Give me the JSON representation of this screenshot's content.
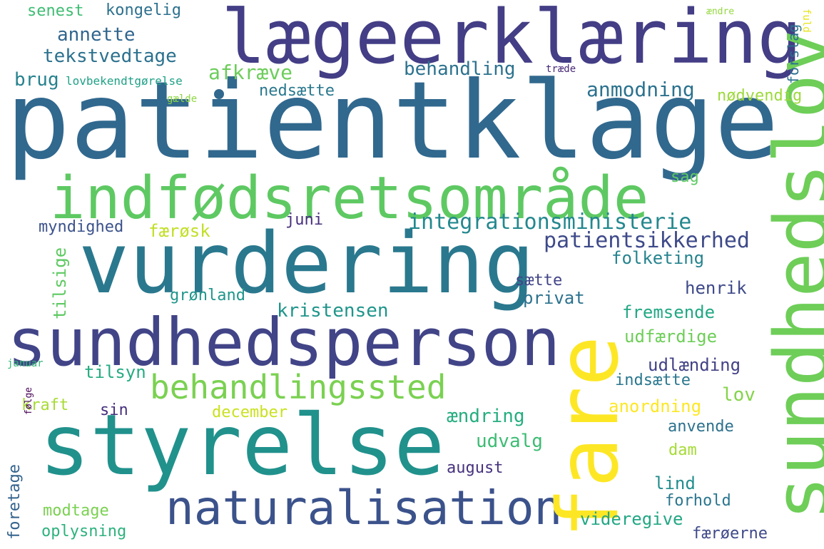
{
  "words": [
    {
      "id": "w1",
      "text": "patientklage",
      "color": "#31688e",
      "vertical": false
    },
    {
      "id": "w2",
      "text": "lægeerklæring",
      "color": "#433e85",
      "vertical": false
    },
    {
      "id": "w3",
      "text": "vurdering",
      "color": "#2a788e",
      "vertical": false
    },
    {
      "id": "w4",
      "text": "styrelse",
      "color": "#21918c",
      "vertical": false
    },
    {
      "id": "w5",
      "text": "sundhedsperson",
      "color": "#414487",
      "vertical": false
    },
    {
      "id": "w6",
      "text": "indfødsretsområde",
      "color": "#5ec962",
      "vertical": false
    },
    {
      "id": "w7",
      "text": "naturalisation",
      "color": "#3b528b",
      "vertical": false
    },
    {
      "id": "w8",
      "text": "behandlingssted",
      "color": "#7ad151",
      "vertical": false
    },
    {
      "id": "w9",
      "text": "fare",
      "color": "#fde725",
      "vertical": true
    },
    {
      "id": "w10",
      "text": "sundhedslov",
      "color": "#6ece58",
      "vertical": true
    },
    {
      "id": "w11",
      "text": "integrationsministerie",
      "color": "#23888e",
      "vertical": false
    },
    {
      "id": "w12",
      "text": "patientsikkerhed",
      "color": "#3e4a89",
      "vertical": false
    },
    {
      "id": "w13",
      "text": "anmodning",
      "color": "#2c728e",
      "vertical": false
    },
    {
      "id": "w14",
      "text": "behandling",
      "color": "#2c728e",
      "vertical": false
    },
    {
      "id": "w15",
      "text": "tekstvedtage",
      "color": "#2c718e",
      "vertical": false
    },
    {
      "id": "w16",
      "text": "annette",
      "color": "#31668e",
      "vertical": false
    },
    {
      "id": "w17",
      "text": "senest",
      "color": "#3fbc73",
      "vertical": false
    },
    {
      "id": "w18",
      "text": "kongelig",
      "color": "#2d708e",
      "vertical": false
    },
    {
      "id": "w19",
      "text": "brug",
      "color": "#26828e",
      "vertical": false
    },
    {
      "id": "w20",
      "text": "lovbekendtgørelse",
      "color": "#1fa187",
      "vertical": false
    },
    {
      "id": "w21",
      "text": "afkræve",
      "color": "#6ccd5a",
      "vertical": false
    },
    {
      "id": "w22",
      "text": "nedsætte",
      "color": "#2a788e",
      "vertical": false
    },
    {
      "id": "w23",
      "text": "gælde",
      "color": "#8fd744",
      "vertical": false
    },
    {
      "id": "w24",
      "text": "træde",
      "color": "#482878",
      "vertical": false
    },
    {
      "id": "w25",
      "text": "ændre",
      "color": "#95d840",
      "vertical": false
    },
    {
      "id": "w26",
      "text": "forslag",
      "color": "#2c718e",
      "vertical": true
    },
    {
      "id": "w27",
      "text": "fuld",
      "color": "#e5e419",
      "vertical": false,
      "rotate_right": true
    },
    {
      "id": "w28",
      "text": "nødvendig",
      "color": "#9dd93b",
      "vertical": false
    },
    {
      "id": "w29",
      "text": "sag",
      "color": "#5ec962",
      "vertical": false
    },
    {
      "id": "w30",
      "text": "myndighed",
      "color": "#3b528b",
      "vertical": false
    },
    {
      "id": "w31",
      "text": "færøsk",
      "color": "#c0df25",
      "vertical": false
    },
    {
      "id": "w32",
      "text": "juni",
      "color": "#472f7d",
      "vertical": false
    },
    {
      "id": "w33",
      "text": "folketing",
      "color": "#25838e",
      "vertical": false
    },
    {
      "id": "w34",
      "text": "tilsige",
      "color": "#5ec962",
      "vertical": true
    },
    {
      "id": "w35",
      "text": "grønland",
      "color": "#1f968b",
      "vertical": false
    },
    {
      "id": "w36",
      "text": "kristensen",
      "color": "#1f958b",
      "vertical": false
    },
    {
      "id": "w37",
      "text": "sætte",
      "color": "#414487",
      "vertical": false
    },
    {
      "id": "w38",
      "text": "privat",
      "color": "#2c728e",
      "vertical": false
    },
    {
      "id": "w39",
      "text": "henrik",
      "color": "#3e4989",
      "vertical": false
    },
    {
      "id": "w40",
      "text": "fremsende",
      "color": "#22a884",
      "vertical": false
    },
    {
      "id": "w41",
      "text": "udfærdige",
      "color": "#6ece58",
      "vertical": false
    },
    {
      "id": "w42",
      "text": "udlænding",
      "color": "#424186",
      "vertical": false
    },
    {
      "id": "w43",
      "text": "tilsyn",
      "color": "#25ab82",
      "vertical": false
    },
    {
      "id": "w44",
      "text": "januar",
      "color": "#35b779",
      "vertical": false
    },
    {
      "id": "w45",
      "text": "indsætte",
      "color": "#2a778e",
      "vertical": false
    },
    {
      "id": "w46",
      "text": "lov",
      "color": "#84d44b",
      "vertical": false
    },
    {
      "id": "w47",
      "text": "kraft",
      "color": "#a8db34",
      "vertical": false
    },
    {
      "id": "w48",
      "text": "sin",
      "color": "#46307e",
      "vertical": false
    },
    {
      "id": "w49",
      "text": "december",
      "color": "#cae11f",
      "vertical": false
    },
    {
      "id": "w50",
      "text": "anordning",
      "color": "#fde725",
      "vertical": false
    },
    {
      "id": "w51",
      "text": "ændring",
      "color": "#26ad81",
      "vertical": false
    },
    {
      "id": "w52",
      "text": "anvende",
      "color": "#2d718e",
      "vertical": false
    },
    {
      "id": "w53",
      "text": "udvalg",
      "color": "#3dbc74",
      "vertical": false
    },
    {
      "id": "w54",
      "text": "dam",
      "color": "#a5db36",
      "vertical": false
    },
    {
      "id": "w55",
      "text": "august",
      "color": "#46327e",
      "vertical": false
    },
    {
      "id": "w56",
      "text": "lind",
      "color": "#228d8d",
      "vertical": false
    },
    {
      "id": "w57",
      "text": "forhold",
      "color": "#2a768e",
      "vertical": false
    },
    {
      "id": "w58",
      "text": "modtage",
      "color": "#7ad151",
      "vertical": false
    },
    {
      "id": "w59",
      "text": "oplysning",
      "color": "#2db27d",
      "vertical": false
    },
    {
      "id": "w60",
      "text": "videregive",
      "color": "#22a785",
      "vertical": false
    },
    {
      "id": "w61",
      "text": "færøerne",
      "color": "#3e4989",
      "vertical": false
    },
    {
      "id": "w62",
      "text": "foretage",
      "color": "#33638d",
      "vertical": true
    },
    {
      "id": "w63",
      "text": "følge",
      "color": "#440154",
      "vertical": true
    }
  ],
  "dot_color": "#31688e"
}
